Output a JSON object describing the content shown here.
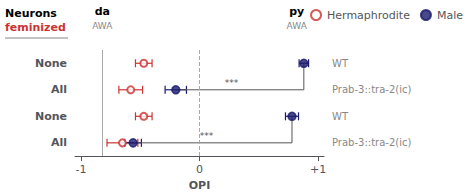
{
  "chart_data": {
    "type": "scatter",
    "xlabel": "OPI",
    "xlim": [
      -1.05,
      1.05
    ],
    "xticks": [
      -1,
      0,
      {
        "value": 1,
        "label": "+1"
      }
    ],
    "grid": false,
    "legend": "upper right",
    "categories": [
      "None",
      "All",
      "None",
      "All"
    ],
    "row_notes": [
      "WT",
      "Prab-3::tra-2(ic)",
      "WT",
      "Prab-3::tra-2(ic)"
    ],
    "row_header": [
      {
        "text": "Neurons"
      },
      {
        "text": "feminized",
        "color": "#cc3333"
      }
    ],
    "headers": [
      {
        "text": "da",
        "subtext": "AWA",
        "x": -0.82
      },
      {
        "text": "py",
        "subtext": "AWA",
        "x": 0.82
      }
    ],
    "vlines": [
      {
        "x": 0.0,
        "line_style": "dashed",
        "color": "#aaaaaa"
      },
      {
        "x": -0.82,
        "line_style": "solid",
        "color": "#aaaaaa"
      }
    ],
    "series": [
      {
        "name": "Hermaphrodite",
        "color": "#cc3333",
        "marker": "open_circle",
        "values": [
          -0.47,
          -0.58,
          -0.47,
          -0.65
        ],
        "errors": [
          0.07,
          0.1,
          0.07,
          0.13
        ]
      },
      {
        "name": "Male",
        "color": "#1a1a6e",
        "marker": "circle",
        "values": [
          0.88,
          -0.2,
          0.78,
          -0.56
        ],
        "errors": [
          0.04,
          0.09,
          0.055,
          0.07
        ]
      }
    ],
    "brackets": [
      {
        "label": "***",
        "label_x": 0.27,
        "x_left": -0.2,
        "x_right": 0.88,
        "color": "#555555"
      },
      {
        "label": "***",
        "label_x": 0.06,
        "x_left": -0.56,
        "x_right": 0.78,
        "color": "#555555"
      }
    ]
  }
}
